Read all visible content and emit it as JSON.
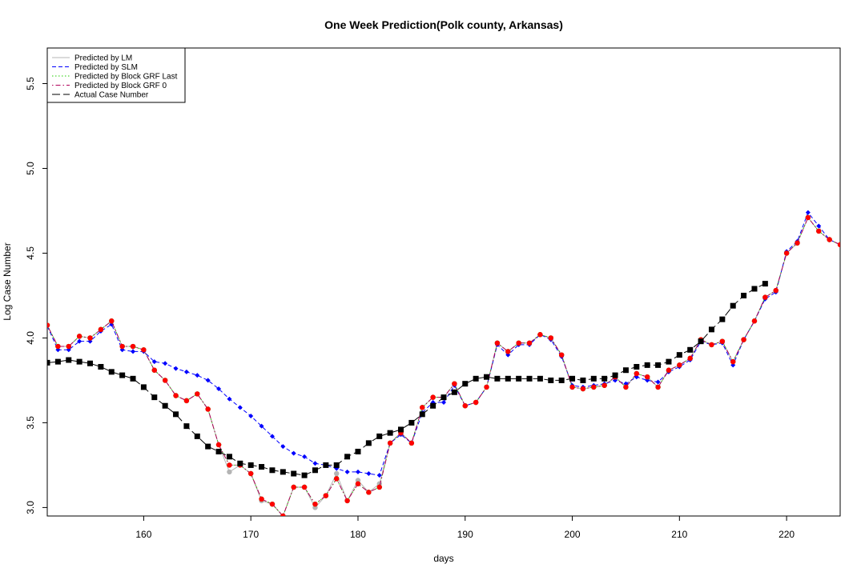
{
  "chart_data": {
    "type": "line",
    "title": "One Week Prediction(Polk county, Arkansas)",
    "x_label": "days",
    "y_label": "Log Case Number",
    "x": [
      151,
      152,
      153,
      154,
      155,
      156,
      157,
      158,
      159,
      160,
      161,
      162,
      163,
      164,
      165,
      166,
      167,
      168,
      169,
      170,
      171,
      172,
      173,
      174,
      175,
      176,
      177,
      178,
      179,
      180,
      181,
      182,
      183,
      184,
      185,
      186,
      187,
      188,
      189,
      190,
      191,
      192,
      193,
      194,
      195,
      196,
      197,
      198,
      199,
      200,
      201,
      202,
      203,
      204,
      205,
      206,
      207,
      208,
      209,
      210,
      211,
      212,
      213,
      214,
      215,
      216,
      217,
      218,
      219,
      220,
      221,
      222,
      223,
      224,
      225
    ],
    "xlim": [
      151,
      225
    ],
    "xticks": [
      160,
      170,
      180,
      190,
      200,
      210,
      220
    ],
    "ylim": [
      2.95,
      5.71
    ],
    "yticks": [
      {
        "value": 3,
        "label": "3.0"
      },
      3.5,
      {
        "value": 4,
        "label": "4.0"
      },
      4.5,
      {
        "value": 5,
        "label": "5.0"
      },
      5.5
    ],
    "legend": "top-left",
    "series": [
      {
        "name": "Predicted by LM",
        "color": "#b4b4b4",
        "marker_color": "#b4b4b4",
        "line_style": "solid",
        "marker": "circle",
        "values": [
          4.075,
          3.95,
          3.95,
          4.01,
          4.0,
          4.05,
          4.1,
          3.95,
          3.95,
          3.93,
          3.81,
          3.75,
          3.66,
          3.63,
          3.67,
          3.58,
          3.37,
          3.21,
          3.25,
          3.2,
          3.04,
          3.02,
          2.95,
          3.12,
          3.12,
          3.0,
          3.07,
          3.2,
          3.04,
          3.16,
          3.09,
          3.14,
          3.38,
          3.44,
          3.38,
          3.59,
          3.65,
          3.65,
          3.73,
          3.6,
          3.62,
          3.71,
          3.97,
          3.92,
          3.97,
          3.97,
          4.02,
          4.0,
          3.9,
          3.71,
          3.7,
          3.71,
          3.72,
          3.77,
          3.71,
          3.79,
          3.77,
          3.71,
          3.81,
          3.84,
          3.88,
          3.99,
          3.96,
          3.98,
          3.86,
          3.99,
          4.1,
          4.24,
          4.28,
          4.5,
          4.56,
          4.71,
          4.63,
          4.58,
          4.55
        ]
      },
      {
        "name": "Predicted by SLM",
        "color": "#0000ff",
        "marker_color": "#0000ff",
        "line_style": "dashed",
        "marker": "diamond",
        "values": [
          4.07,
          3.93,
          3.93,
          3.98,
          3.98,
          4.04,
          4.08,
          3.93,
          3.92,
          3.92,
          3.86,
          3.85,
          3.82,
          3.8,
          3.78,
          3.75,
          3.7,
          3.64,
          3.59,
          3.54,
          3.48,
          3.42,
          3.36,
          3.32,
          3.3,
          3.26,
          3.25,
          3.23,
          3.21,
          3.21,
          3.2,
          3.19,
          3.38,
          3.43,
          3.38,
          3.56,
          3.62,
          3.62,
          3.72,
          3.6,
          3.62,
          3.71,
          3.96,
          3.9,
          3.96,
          3.96,
          4.02,
          3.99,
          3.89,
          3.72,
          3.71,
          3.72,
          3.73,
          3.75,
          3.73,
          3.77,
          3.75,
          3.74,
          3.8,
          3.83,
          3.87,
          3.98,
          3.96,
          3.97,
          3.84,
          3.99,
          4.1,
          4.23,
          4.27,
          4.51,
          4.57,
          4.74,
          4.66,
          4.58,
          4.55
        ]
      },
      {
        "name": "Predicted by Block GRF Last",
        "color": "#22cc00",
        "marker_color": "#22cc00",
        "line_style": "dotted",
        "marker": "circle",
        "values": [
          4.075,
          3.95,
          3.95,
          4.01,
          4.0,
          4.05,
          4.1,
          3.95,
          3.95,
          3.93,
          3.81,
          3.75,
          3.66,
          3.63,
          3.67,
          3.58,
          3.37,
          3.25,
          3.25,
          3.2,
          3.05,
          3.02,
          2.95,
          3.12,
          3.12,
          3.02,
          3.07,
          3.17,
          3.04,
          3.14,
          3.09,
          3.12,
          3.38,
          3.44,
          3.38,
          3.59,
          3.65,
          3.65,
          3.73,
          3.6,
          3.62,
          3.71,
          3.97,
          3.92,
          3.97,
          3.97,
          4.02,
          4.0,
          3.9,
          3.71,
          3.7,
          3.71,
          3.72,
          3.77,
          3.71,
          3.79,
          3.77,
          3.71,
          3.81,
          3.84,
          3.88,
          3.99,
          3.96,
          3.98,
          3.86,
          3.99,
          4.1,
          4.24,
          4.28,
          4.5,
          4.56,
          4.71,
          4.63,
          4.58,
          4.55
        ]
      },
      {
        "name": "Predicted by Block GRF 0",
        "color": "#b0005a",
        "marker_color": "#ff0000",
        "line_style": "dotdash",
        "marker": "circle",
        "values": [
          4.075,
          3.95,
          3.95,
          4.01,
          4.0,
          4.05,
          4.1,
          3.95,
          3.95,
          3.93,
          3.81,
          3.75,
          3.66,
          3.63,
          3.67,
          3.58,
          3.37,
          3.25,
          3.25,
          3.2,
          3.05,
          3.02,
          2.95,
          3.12,
          3.12,
          3.02,
          3.07,
          3.17,
          3.04,
          3.14,
          3.09,
          3.12,
          3.38,
          3.44,
          3.38,
          3.59,
          3.65,
          3.65,
          3.73,
          3.6,
          3.62,
          3.71,
          3.97,
          3.92,
          3.97,
          3.97,
          4.02,
          4.0,
          3.9,
          3.71,
          3.7,
          3.71,
          3.72,
          3.77,
          3.71,
          3.79,
          3.77,
          3.71,
          3.81,
          3.84,
          3.88,
          3.99,
          3.96,
          3.98,
          3.86,
          3.99,
          4.1,
          4.24,
          4.28,
          4.5,
          4.56,
          4.71,
          4.63,
          4.58,
          4.55
        ]
      },
      {
        "name": "Actual Case Number",
        "color": "#000000",
        "marker_color": "#000000",
        "line_style": "longdash",
        "marker": "square",
        "values": [
          3.854,
          3.86,
          3.87,
          3.86,
          3.85,
          3.83,
          3.8,
          3.78,
          3.76,
          3.71,
          3.65,
          3.6,
          3.55,
          3.48,
          3.42,
          3.36,
          3.33,
          3.3,
          3.26,
          3.25,
          3.24,
          3.22,
          3.21,
          3.2,
          3.19,
          3.22,
          3.25,
          3.25,
          3.3,
          3.33,
          3.38,
          3.42,
          3.44,
          3.46,
          3.5,
          3.55,
          3.6,
          3.65,
          3.68,
          3.73,
          3.76,
          3.77,
          3.76,
          3.76,
          3.76,
          3.76,
          3.76,
          3.75,
          3.75,
          3.76,
          3.75,
          3.76,
          3.76,
          3.78,
          3.81,
          3.83,
          3.84,
          3.84,
          3.86,
          3.9,
          3.93,
          3.98,
          4.05,
          4.11,
          4.19,
          4.25,
          4.29,
          4.32,
          null,
          null,
          null,
          null,
          null,
          null,
          null
        ]
      }
    ]
  }
}
